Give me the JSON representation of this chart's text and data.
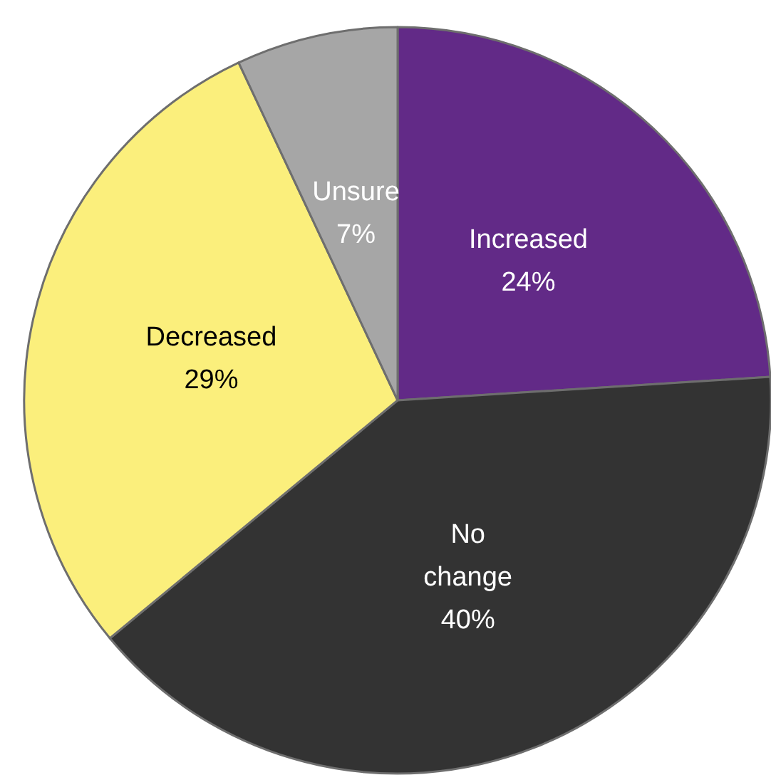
{
  "chart_data": {
    "type": "pie",
    "categories": [
      "Increased",
      "No change",
      "Decreased",
      "Unsure"
    ],
    "values": [
      24,
      40,
      29,
      7
    ],
    "colors": [
      "#622a87",
      "#333333",
      "#fbef7c",
      "#a6a6a6"
    ],
    "value_labels": [
      "24%",
      "40%",
      "29%",
      "7%"
    ],
    "legend": false
  }
}
